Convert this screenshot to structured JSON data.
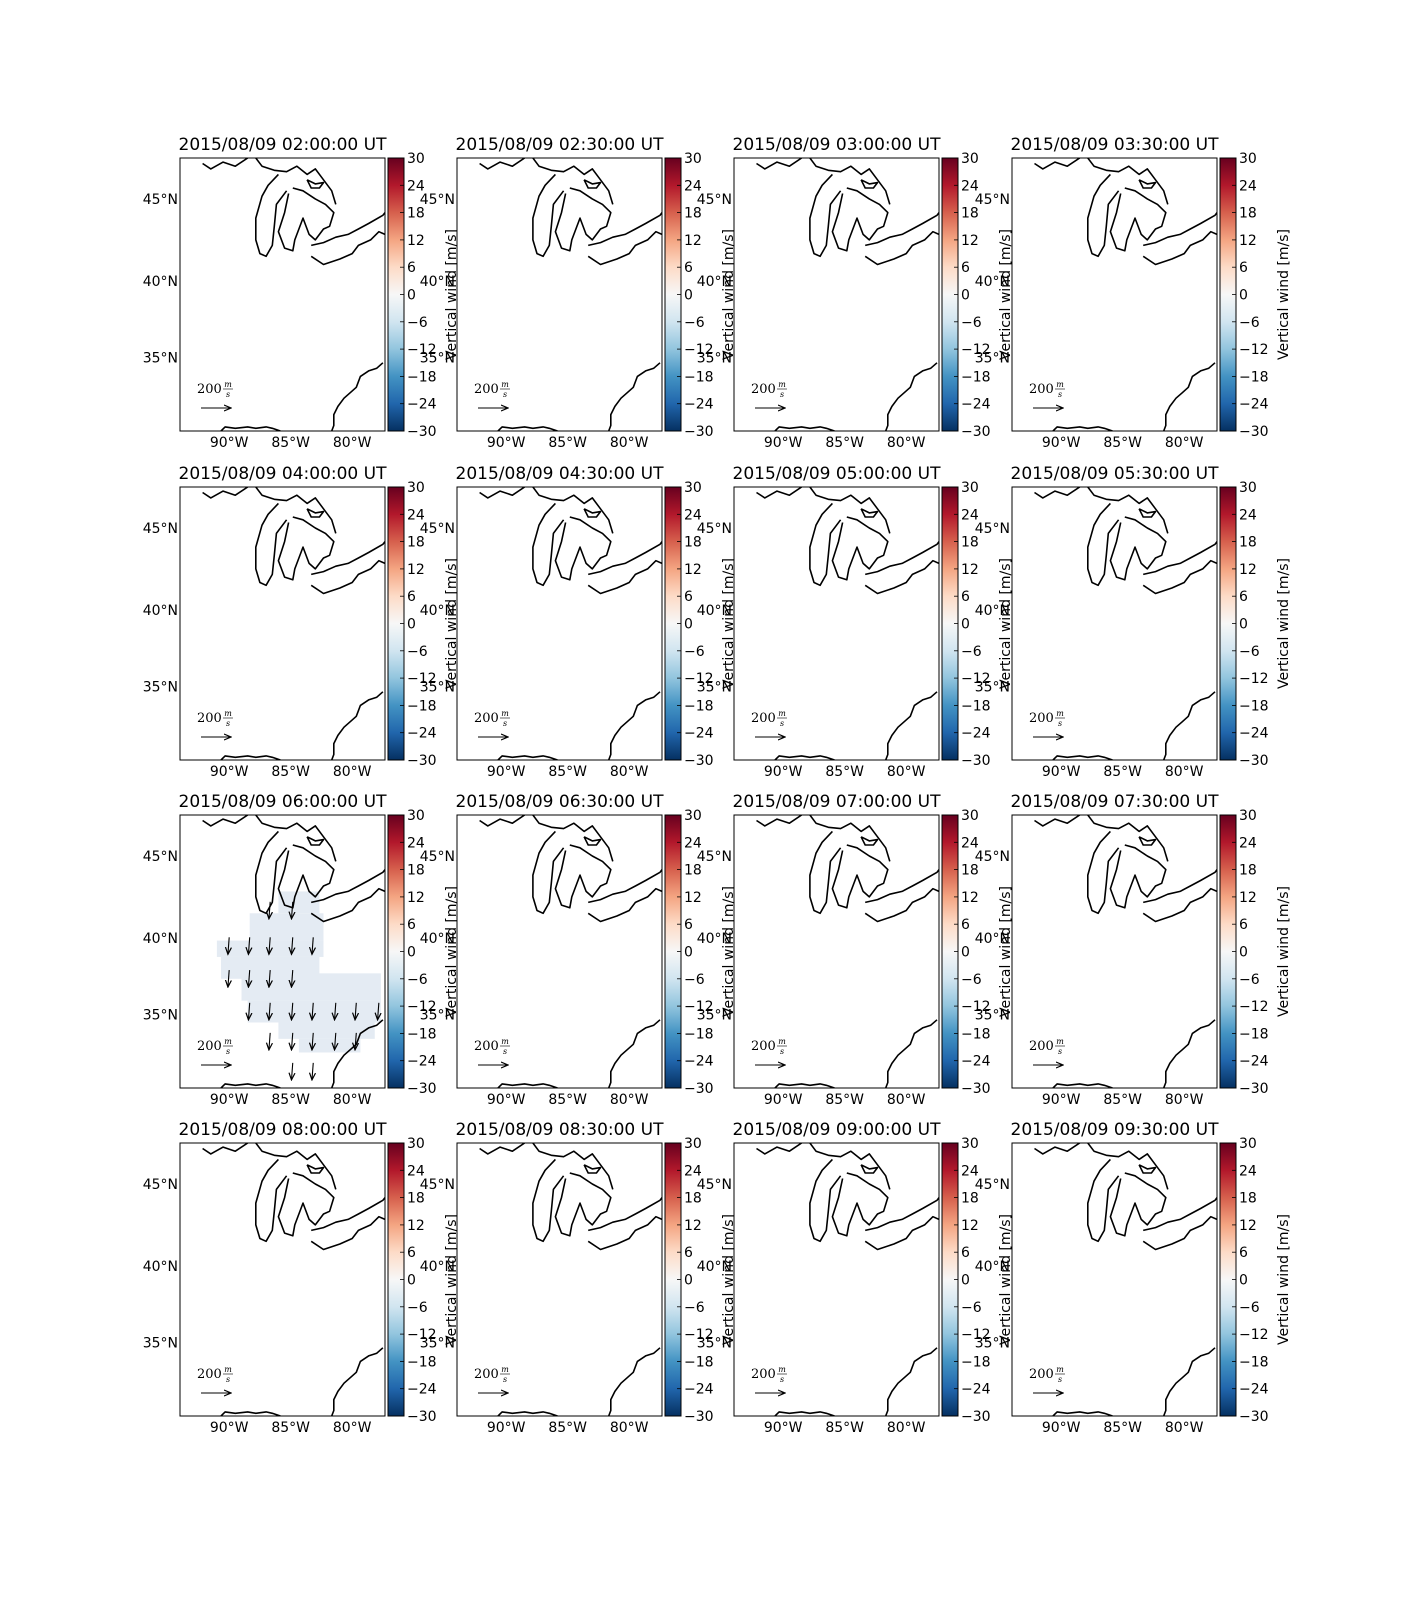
{
  "figure": {
    "panels": [
      {
        "title": "2015/08/09 02:00:00 UT",
        "active": false
      },
      {
        "title": "2015/08/09 02:30:00 UT",
        "active": false
      },
      {
        "title": "2015/08/09 03:00:00 UT",
        "active": false
      },
      {
        "title": "2015/08/09 03:30:00 UT",
        "active": false
      },
      {
        "title": "2015/08/09 04:00:00 UT",
        "active": false
      },
      {
        "title": "2015/08/09 04:30:00 UT",
        "active": false
      },
      {
        "title": "2015/08/09 05:00:00 UT",
        "active": false
      },
      {
        "title": "2015/08/09 05:30:00 UT",
        "active": false
      },
      {
        "title": "2015/08/09 06:00:00 UT",
        "active": true
      },
      {
        "title": "2015/08/09 06:30:00 UT",
        "active": false
      },
      {
        "title": "2015/08/09 07:00:00 UT",
        "active": false
      },
      {
        "title": "2015/08/09 07:30:00 UT",
        "active": false
      },
      {
        "title": "2015/08/09 08:00:00 UT",
        "active": false
      },
      {
        "title": "2015/08/09 08:30:00 UT",
        "active": false
      },
      {
        "title": "2015/08/09 09:00:00 UT",
        "active": false
      },
      {
        "title": "2015/08/09 09:30:00 UT",
        "active": false
      }
    ],
    "lon_ticks": [
      "90°W",
      "85°W",
      "80°W"
    ],
    "lat_ticks": [
      "45°N",
      "40°N",
      "35°N"
    ],
    "colorbar": {
      "label": "Vertical wind [m/s]",
      "ticks": [
        "30",
        "24",
        "18",
        "12",
        "6",
        "0",
        "−6",
        "−12",
        "−18",
        "−24",
        "−30"
      ],
      "vmin": -30,
      "vmax": 30,
      "colormap": [
        "#67001f",
        "#b2182b",
        "#d6604d",
        "#f4a582",
        "#fddbc7",
        "#f7f7f7",
        "#d1e5f0",
        "#92c5de",
        "#4393c3",
        "#2166ac",
        "#053061"
      ]
    },
    "quiver_key": {
      "value": "200",
      "unit_num": "m",
      "unit_den": "s"
    },
    "field_color": "#e4ebf3",
    "vertical_wind_estimate": -5
  }
}
